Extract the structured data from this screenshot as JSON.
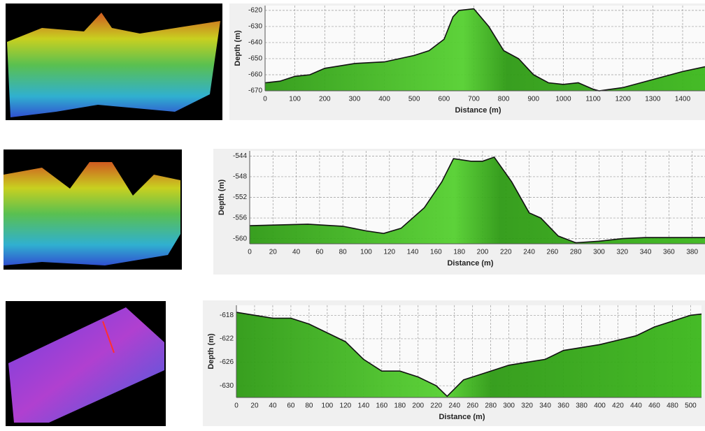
{
  "chart_data": [
    {
      "type": "area",
      "x_label": "Distance (m)",
      "y_label": "Depth (m)",
      "color": "#3cb81c",
      "grid": true,
      "x": [
        0,
        50,
        100,
        150,
        200,
        300,
        400,
        500,
        550,
        600,
        630,
        650,
        700,
        750,
        800,
        850,
        900,
        950,
        1000,
        1050,
        1100,
        1120,
        1200,
        1300,
        1400,
        1475
      ],
      "values": [
        -665,
        -664,
        -661,
        -660,
        -656,
        -653,
        -652,
        -648,
        -645,
        -638,
        -624,
        -620,
        -619,
        -630,
        -645,
        -650,
        -660,
        -665,
        -666,
        -665,
        -669,
        -670,
        -668,
        -663,
        -658,
        -655
      ],
      "xlim": [
        0,
        1475
      ],
      "ylim": [
        -670,
        -617
      ],
      "xticks": [
        0,
        100,
        200,
        300,
        400,
        500,
        600,
        700,
        800,
        900,
        1000,
        1100,
        1200,
        1300,
        1400
      ],
      "yticks": [
        -620,
        -630,
        -640,
        -650,
        -660,
        -670
      ]
    },
    {
      "type": "area",
      "x_label": "Distance (m)",
      "y_label": "Depth (m)",
      "color": "#3cb81c",
      "grid": true,
      "x": [
        0,
        50,
        80,
        100,
        115,
        130,
        150,
        165,
        175,
        190,
        200,
        210,
        225,
        240,
        250,
        265,
        280,
        300,
        320,
        340,
        391
      ],
      "values": [
        -557.5,
        -557.2,
        -557.6,
        -558.5,
        -559,
        -558,
        -554,
        -549,
        -544.5,
        -545,
        -545,
        -544.2,
        -549,
        -555,
        -556,
        -559.5,
        -560.8,
        -560.5,
        -560,
        -559.8,
        -559.8
      ],
      "xlim": [
        0,
        391
      ],
      "ylim": [
        -561,
        -543
      ],
      "xticks": [
        0,
        20,
        40,
        60,
        80,
        100,
        120,
        140,
        160,
        180,
        200,
        220,
        240,
        260,
        280,
        300,
        320,
        340,
        360,
        380
      ],
      "yticks": [
        -544,
        -548,
        -552,
        -556,
        -560
      ]
    },
    {
      "type": "area",
      "x_label": "Distance (m)",
      "y_label": "Depth (m)",
      "color": "#3cb81c",
      "grid": true,
      "x": [
        0,
        20,
        40,
        60,
        80,
        100,
        120,
        140,
        160,
        180,
        200,
        220,
        232,
        250,
        280,
        300,
        320,
        340,
        360,
        400,
        440,
        460,
        480,
        500,
        512
      ],
      "values": [
        -617.5,
        -618,
        -618.5,
        -618.5,
        -619.5,
        -621,
        -622.5,
        -625.5,
        -627.5,
        -627.5,
        -628.5,
        -630,
        -631.8,
        -629,
        -627.5,
        -626.5,
        -626,
        -625.5,
        -624,
        -623,
        -621.5,
        -620,
        -619,
        -618,
        -617.8
      ],
      "xlim": [
        0,
        512
      ],
      "ylim": [
        -632,
        -616.3
      ],
      "xticks": [
        0,
        20,
        40,
        60,
        80,
        100,
        120,
        140,
        160,
        180,
        200,
        220,
        240,
        260,
        280,
        300,
        320,
        340,
        360,
        380,
        400,
        420,
        440,
        460,
        480,
        500
      ],
      "yticks": [
        -618,
        -622,
        -626,
        -630
      ]
    }
  ]
}
